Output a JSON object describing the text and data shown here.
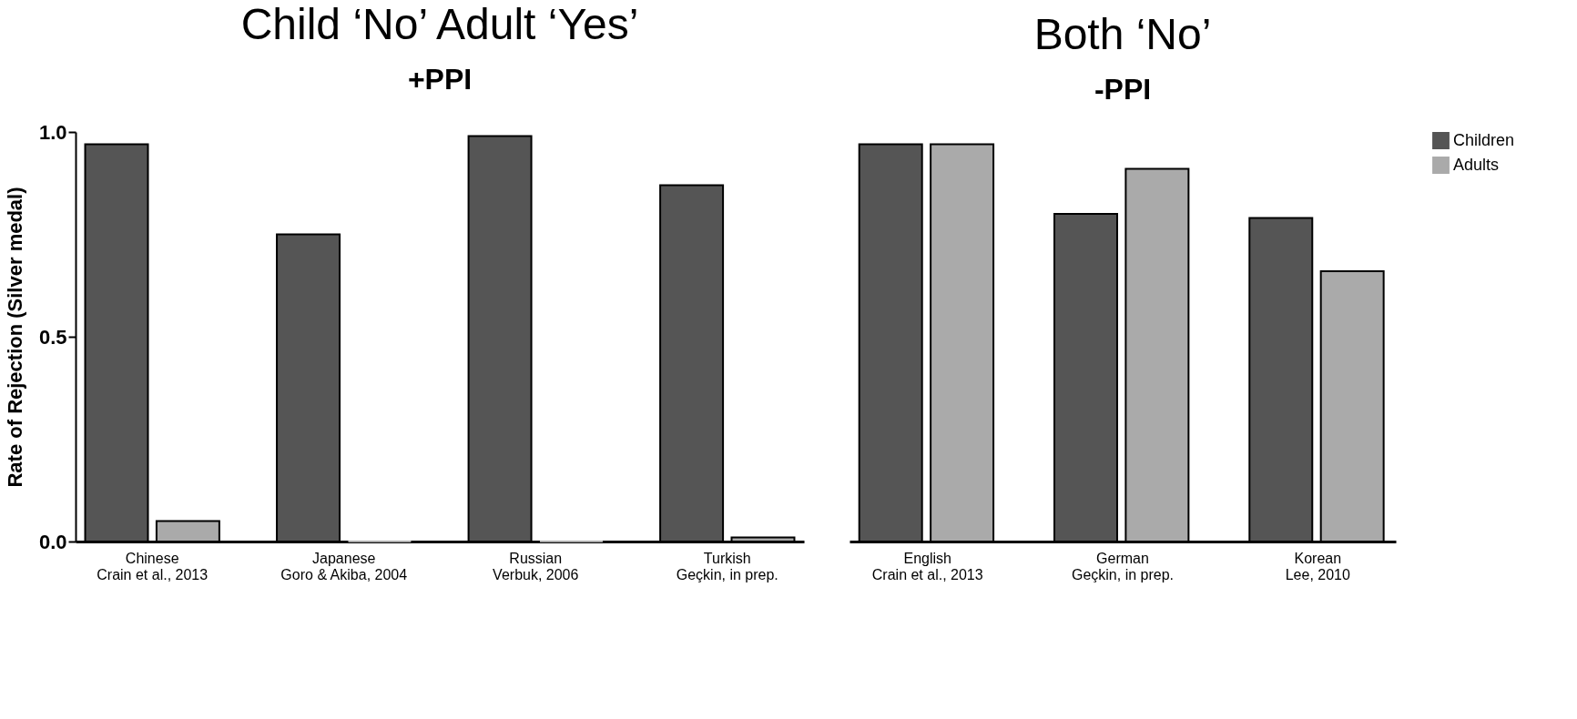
{
  "chart_data": [
    {
      "type": "bar",
      "title": "Child ‘No’   Adult ‘Yes’",
      "subtitle": "+PPI",
      "ylabel": "Rate of Rejection (Silver medal)",
      "categories": [
        "Chinese\nCrain et al., 2013",
        "Japanese\nGoro & Akiba, 2004",
        "Russian\nVerbuk, 2006",
        "Turkish\nGeçkin, in prep."
      ],
      "series": [
        {
          "name": "Children",
          "color": "#555555",
          "values": [
            0.97,
            0.75,
            0.99,
            0.87
          ]
        },
        {
          "name": "Adults",
          "color": "#aaaaaa",
          "values": [
            0.05,
            0.0,
            0.0,
            0.01
          ]
        }
      ],
      "ylim": [
        0,
        1
      ],
      "yticks": [
        {
          "value": 0,
          "label": "0.0"
        },
        0.5,
        {
          "value": 1,
          "label": "1.0"
        }
      ],
      "grid": false,
      "legend": "right"
    },
    {
      "type": "bar",
      "title": "Both ‘No’",
      "subtitle": "-PPI",
      "categories": [
        "English\nCrain et al., 2013",
        "German\nGeçkin, in prep.",
        "Korean\nLee, 2010"
      ],
      "series": [
        {
          "name": "Children",
          "color": "#555555",
          "values": [
            0.97,
            0.8,
            0.79
          ]
        },
        {
          "name": "Adults",
          "color": "#aaaaaa",
          "values": [
            0.97,
            0.91,
            0.66
          ]
        }
      ],
      "ylim": [
        0,
        1
      ],
      "grid": false,
      "legend": "right",
      "tick_labels": "x"
    }
  ]
}
